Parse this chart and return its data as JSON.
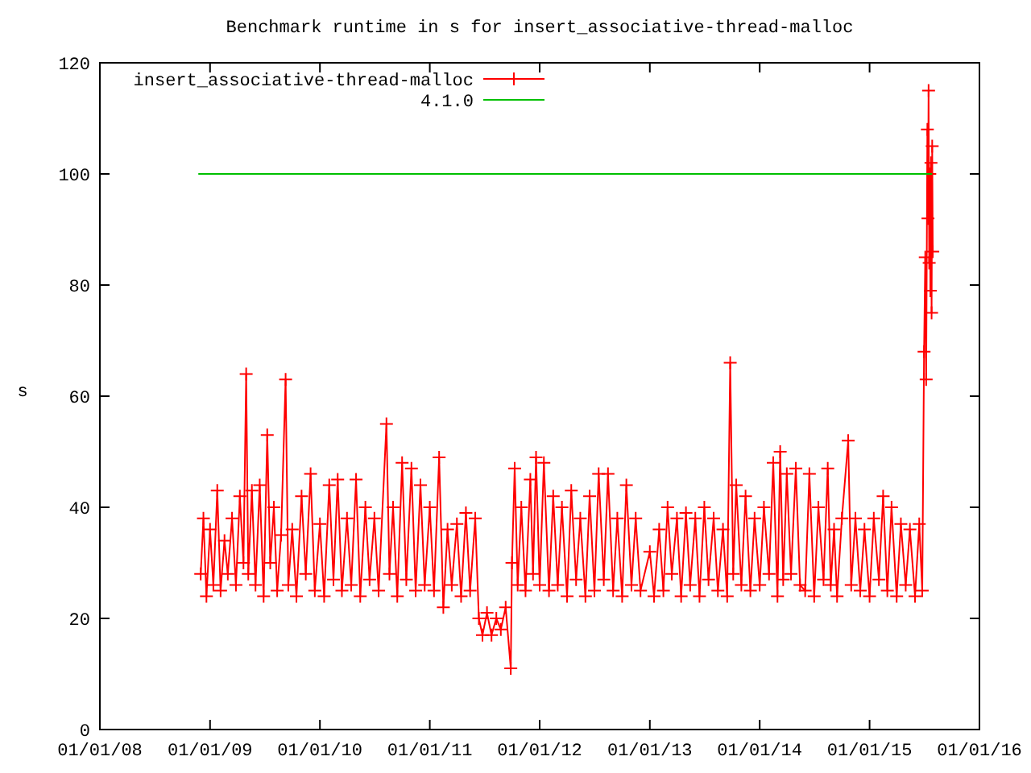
{
  "chart_data": {
    "type": "line",
    "title": "Benchmark runtime in s for insert_associative-thread-malloc",
    "ylabel": "s",
    "xlim": [
      "2008-01-01",
      "2016-01-01"
    ],
    "xticks": [
      {
        "value": "2008-01-01",
        "label": "01/01/08"
      },
      {
        "value": "2009-01-01",
        "label": "01/01/09"
      },
      {
        "value": "2010-01-01",
        "label": "01/01/10"
      },
      {
        "value": "2011-01-01",
        "label": "01/01/11"
      },
      {
        "value": "2012-01-01",
        "label": "01/01/12"
      },
      {
        "value": "2013-01-01",
        "label": "01/01/13"
      },
      {
        "value": "2014-01-01",
        "label": "01/01/14"
      },
      {
        "value": "2015-01-01",
        "label": "01/01/15"
      },
      {
        "value": "2016-01-01",
        "label": "01/01/16"
      }
    ],
    "ylim": [
      0,
      120
    ],
    "yticks": [
      0,
      20,
      40,
      60,
      80,
      100,
      120
    ],
    "grid": false,
    "legend": "top left",
    "series": [
      {
        "name": "insert_associative-thread-malloc",
        "color": "#ff0000",
        "marker": "cross",
        "x": [
          "2008-12-01",
          "2008-12-10",
          "2008-12-20",
          "2009-01-01",
          "2009-01-12",
          "2009-01-25",
          "2009-02-05",
          "2009-02-18",
          "2009-03-01",
          "2009-03-15",
          "2009-03-28",
          "2009-04-10",
          "2009-04-22",
          "2009-05-01",
          "2009-05-08",
          "2009-05-20",
          "2009-06-01",
          "2009-06-15",
          "2009-06-28",
          "2009-07-10",
          "2009-07-20",
          "2009-08-01",
          "2009-08-12",
          "2009-08-25",
          "2009-09-09",
          "2009-09-18",
          "2009-10-01",
          "2009-10-15",
          "2009-11-01",
          "2009-11-15",
          "2009-12-01",
          "2009-12-15",
          "2010-01-01",
          "2010-01-15",
          "2010-02-01",
          "2010-02-15",
          "2010-03-01",
          "2010-03-15",
          "2010-04-01",
          "2010-04-15",
          "2010-05-01",
          "2010-05-15",
          "2010-06-01",
          "2010-06-15",
          "2010-07-01",
          "2010-07-15",
          "2010-08-10",
          "2010-08-20",
          "2010-09-01",
          "2010-09-15",
          "2010-10-01",
          "2010-10-15",
          "2010-11-01",
          "2010-11-15",
          "2010-12-01",
          "2010-12-15",
          "2011-01-01",
          "2011-01-15",
          "2011-02-01",
          "2011-02-15",
          "2011-03-01",
          "2011-03-15",
          "2011-04-01",
          "2011-04-15",
          "2011-05-01",
          "2011-05-15",
          "2011-06-01",
          "2011-06-13",
          "2011-06-25",
          "2011-07-10",
          "2011-07-25",
          "2011-08-10",
          "2011-08-25",
          "2011-09-10",
          "2011-09-27",
          "2011-10-01",
          "2011-10-10",
          "2011-10-20",
          "2011-11-01",
          "2011-11-15",
          "2011-12-01",
          "2011-12-10",
          "2011-12-20",
          "2012-01-01",
          "2012-01-15",
          "2012-02-01",
          "2012-02-15",
          "2012-03-01",
          "2012-03-15",
          "2012-04-01",
          "2012-04-15",
          "2012-05-01",
          "2012-05-15",
          "2012-06-01",
          "2012-06-15",
          "2012-07-01",
          "2012-07-15",
          "2012-08-01",
          "2012-08-15",
          "2012-09-01",
          "2012-09-15",
          "2012-10-01",
          "2012-10-15",
          "2012-11-01",
          "2012-11-15",
          "2012-12-01",
          "2013-01-01",
          "2013-01-15",
          "2013-02-01",
          "2013-02-15",
          "2013-03-01",
          "2013-03-15",
          "2013-04-01",
          "2013-04-15",
          "2013-05-01",
          "2013-05-15",
          "2013-06-01",
          "2013-06-15",
          "2013-07-01",
          "2013-07-15",
          "2013-08-01",
          "2013-08-15",
          "2013-09-01",
          "2013-09-15",
          "2013-09-25",
          "2013-10-05",
          "2013-10-15",
          "2013-11-01",
          "2013-11-15",
          "2013-12-01",
          "2013-12-15",
          "2014-01-01",
          "2014-01-15",
          "2014-02-01",
          "2014-02-15",
          "2014-03-01",
          "2014-03-10",
          "2014-03-20",
          "2014-04-01",
          "2014-04-15",
          "2014-05-01",
          "2014-05-15",
          "2014-06-01",
          "2014-06-15",
          "2014-07-01",
          "2014-07-15",
          "2014-08-01",
          "2014-08-15",
          "2014-08-25",
          "2014-09-05",
          "2014-09-15",
          "2014-10-01",
          "2014-10-22",
          "2014-11-01",
          "2014-11-15",
          "2014-12-01",
          "2014-12-15",
          "2015-01-01",
          "2015-01-15",
          "2015-02-01",
          "2015-02-15",
          "2015-03-01",
          "2015-03-15",
          "2015-04-01",
          "2015-04-15",
          "2015-05-01",
          "2015-05-15",
          "2015-06-01",
          "2015-06-15",
          "2015-06-25",
          "2015-07-01",
          "2015-07-05",
          "2015-07-08",
          "2015-07-12",
          "2015-07-14",
          "2015-07-16",
          "2015-07-18",
          "2015-07-20",
          "2015-07-22",
          "2015-07-24",
          "2015-07-26",
          "2015-07-28",
          "2015-07-30"
        ],
        "values": [
          28,
          38,
          24,
          36,
          26,
          43,
          25,
          34,
          28,
          38,
          26,
          42,
          30,
          64,
          28,
          43,
          26,
          44,
          24,
          53,
          30,
          40,
          25,
          35,
          63,
          26,
          36,
          24,
          42,
          28,
          46,
          25,
          37,
          24,
          44,
          27,
          45,
          25,
          38,
          26,
          45,
          24,
          40,
          27,
          38,
          25,
          55,
          28,
          40,
          24,
          48,
          27,
          47,
          25,
          44,
          26,
          40,
          25,
          49,
          22,
          36,
          26,
          37,
          24,
          39,
          25,
          38,
          20,
          17,
          21,
          17,
          20,
          18,
          22,
          11,
          30,
          47,
          26,
          40,
          25,
          45,
          28,
          49,
          26,
          48,
          25,
          42,
          26,
          40,
          24,
          43,
          27,
          38,
          24,
          42,
          25,
          46,
          27,
          46,
          25,
          38,
          24,
          44,
          26,
          38,
          25,
          32,
          24,
          36,
          25,
          40,
          28,
          38,
          24,
          39,
          26,
          38,
          24,
          40,
          27,
          38,
          25,
          36,
          24,
          66,
          28,
          44,
          26,
          42,
          25,
          38,
          26,
          40,
          28,
          48,
          24,
          50,
          27,
          46,
          28,
          47,
          26,
          25,
          46,
          24,
          40,
          27,
          47,
          26,
          36,
          24,
          38,
          52,
          26,
          38,
          25,
          36,
          24,
          38,
          27,
          42,
          25,
          40,
          24,
          37,
          26,
          36,
          24,
          37,
          25,
          68,
          85,
          63,
          108,
          92,
          115,
          84,
          100,
          79,
          102,
          75,
          105,
          86
        ]
      },
      {
        "name": "4.1.0",
        "color": "#00c000",
        "marker": "none",
        "x": [
          "2008-11-23",
          "2015-07-28"
        ],
        "values": [
          100,
          100
        ]
      }
    ]
  }
}
